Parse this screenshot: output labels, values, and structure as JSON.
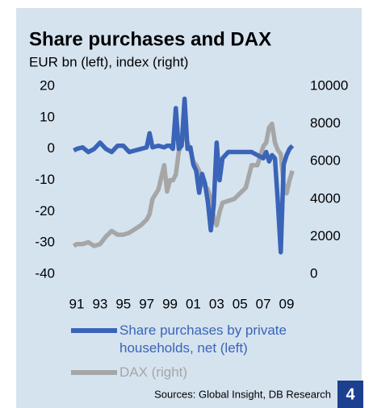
{
  "chart_data": {
    "type": "line",
    "title": "Share purchases and DAX",
    "subtitle": "EUR bn (left), index (right)",
    "source": "Sources: Global Insight, DB Research",
    "chart_number": "4",
    "x": [
      1990.75,
      1991,
      1991.5,
      1992,
      1992.5,
      1993,
      1993.5,
      1994,
      1994.5,
      1995,
      1995.5,
      1996,
      1996.5,
      1997,
      1997.25,
      1997.5,
      1998,
      1998.5,
      1998.75,
      1999,
      1999.25,
      1999.5,
      1999.75,
      2000,
      2000.25,
      2000.5,
      2000.75,
      2001,
      2001.25,
      2001.5,
      2001.75,
      2002,
      2002.25,
      2002.5,
      2002.75,
      2003,
      2003.25,
      2003.5,
      2004,
      2004.5,
      2005,
      2005.5,
      2006,
      2006.5,
      2007,
      2007.25,
      2007.5,
      2007.75,
      2008,
      2008.25,
      2008.5,
      2008.75,
      2009,
      2009.25,
      2009.5
    ],
    "series": [
      {
        "name": "Share purchases by private households, net (left)",
        "color": "#3a64b8",
        "axis": "y",
        "values": [
          -0.5,
          0,
          0.5,
          -1,
          0,
          2,
          0,
          -1,
          1,
          1,
          -1,
          -0.5,
          0,
          0.5,
          5,
          0.5,
          1,
          0.5,
          1,
          1,
          0,
          13,
          0,
          1,
          16,
          0,
          0.5,
          -5,
          -7,
          -14,
          -8,
          -11,
          -17,
          -26,
          -18,
          2,
          -10,
          -3,
          -1,
          -1,
          -1,
          -1,
          -1,
          -2,
          -3,
          -1,
          -4,
          -2,
          -3,
          -17,
          -33,
          -5,
          -2,
          0,
          1
        ]
      },
      {
        "name": "DAX (right)",
        "color": "#a6a6a6",
        "axis": "y2",
        "values": [
          1500,
          1600,
          1600,
          1700,
          1500,
          1600,
          2000,
          2300,
          2100,
          2100,
          2200,
          2400,
          2600,
          2900,
          3200,
          4000,
          4500,
          5800,
          4400,
          5000,
          5000,
          5300,
          6500,
          7000,
          7500,
          7000,
          6600,
          6000,
          5800,
          5500,
          4800,
          4700,
          4500,
          4000,
          3000,
          2600,
          3300,
          3800,
          3900,
          4000,
          4300,
          4600,
          5800,
          5800,
          6800,
          7000,
          7800,
          8000,
          7000,
          6600,
          6400,
          4800,
          4300,
          5000,
          5500
        ]
      }
    ],
    "xlim": [
      1990.5,
      2009.5
    ],
    "xticks": [
      {
        "value": 1991,
        "label": "91"
      },
      {
        "value": 1993,
        "label": "93"
      },
      {
        "value": 1995,
        "label": "95"
      },
      {
        "value": 1997,
        "label": "97"
      },
      {
        "value": 1999,
        "label": "99"
      },
      {
        "value": 2001,
        "label": "01"
      },
      {
        "value": 2003,
        "label": "03"
      },
      {
        "value": 2005,
        "label": "05"
      },
      {
        "value": 2007,
        "label": "07"
      },
      {
        "value": 2009,
        "label": "09"
      }
    ],
    "ylim": [
      -40,
      20
    ],
    "yticks": [
      -40,
      -30,
      -20,
      -10,
      0,
      10,
      20
    ],
    "y2lim": [
      0,
      10000
    ],
    "y2ticks": [
      0,
      2000,
      4000,
      6000,
      8000,
      10000
    ],
    "grid": false
  }
}
